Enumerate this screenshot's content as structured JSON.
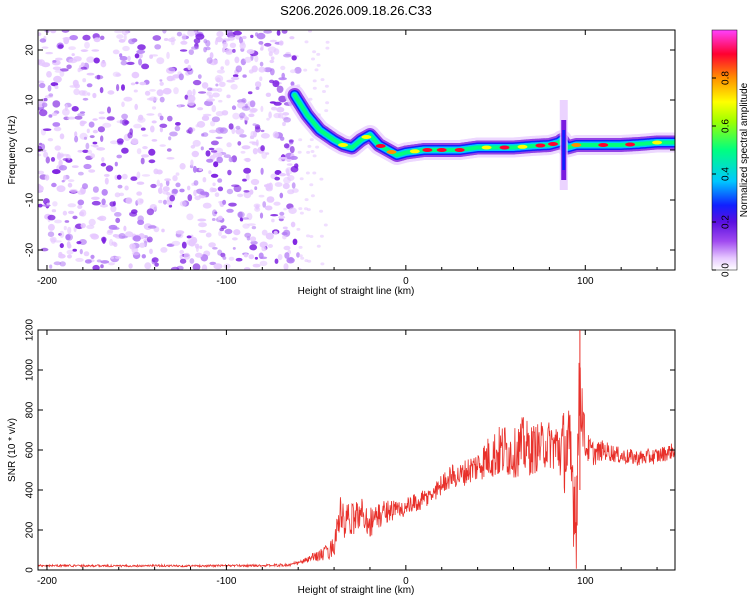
{
  "title": "S206.2026.009.18.26.C33",
  "colors": {
    "snr_line": "#e8302a",
    "axis": "#000000",
    "background": "#ffffff",
    "colormap": [
      "#ffffff",
      "#e6c8ff",
      "#7a1be0",
      "#1020ff",
      "#00c8ff",
      "#00ff80",
      "#ffff00",
      "#ff9000",
      "#ff0030",
      "#ff40ff"
    ]
  },
  "chart_data": [
    {
      "type": "heatmap",
      "name": "spectrogram",
      "title": "S206.2026.009.18.26.C33",
      "xlabel": "Height of straight line (km)",
      "ylabel": "Frequency (Hz)",
      "xlim": [
        -205,
        150
      ],
      "ylim": [
        -24,
        24
      ],
      "xticks": [
        -200,
        -100,
        0,
        100
      ],
      "xtick_labels": [
        "-200",
        "-100",
        "0",
        "100"
      ],
      "yticks": [
        -20,
        -10,
        0,
        10,
        20
      ],
      "ytick_labels": [
        "-20",
        "-10",
        "0",
        "10",
        "20"
      ],
      "noise_region_x": [
        -205,
        -60
      ],
      "trace": {
        "x": [
          -62,
          -55,
          -48,
          -40,
          -35,
          -30,
          -25,
          -20,
          -15,
          -10,
          -5,
          0,
          10,
          20,
          30,
          40,
          50,
          60,
          70,
          80,
          85,
          87,
          90,
          95,
          100,
          110,
          120,
          130,
          140,
          150
        ],
        "y": [
          11,
          7,
          4,
          2,
          1,
          0.5,
          2,
          3,
          1,
          0,
          -1,
          -0.5,
          0,
          0,
          0,
          0.5,
          0.5,
          0.5,
          0.8,
          1,
          1.5,
          2,
          0.5,
          1,
          1,
          1,
          1,
          1.2,
          1.5,
          1.5
        ]
      },
      "spike": {
        "x": 88,
        "y_range": [
          -8,
          10
        ]
      },
      "colorbar": {
        "label": "Normalized spectral amplitude",
        "range": [
          0,
          1
        ],
        "ticks": [
          0.0,
          0.2,
          0.4,
          0.6,
          0.8
        ],
        "tick_labels": [
          "0.0",
          "0.2",
          "0.4",
          "0.6",
          "0.8"
        ]
      }
    },
    {
      "type": "line",
      "name": "snr",
      "xlabel": "Height of straight line (km)",
      "ylabel": "SNR (10 * v/v)",
      "xlim": [
        -205,
        150
      ],
      "ylim": [
        0,
        1200
      ],
      "xticks": [
        -200,
        -100,
        0,
        100
      ],
      "xtick_labels": [
        "-200",
        "-100",
        "0",
        "100"
      ],
      "yticks": [
        0,
        200,
        400,
        600,
        800,
        1000,
        1200
      ],
      "ytick_labels": [
        "0",
        "200",
        "400",
        "600",
        "800",
        "1000",
        "1200"
      ],
      "series": [
        {
          "name": "SNR",
          "x": [
            -205,
            -180,
            -160,
            -140,
            -120,
            -100,
            -80,
            -65,
            -60,
            -55,
            -50,
            -45,
            -40,
            -37,
            -35,
            -30,
            -25,
            -20,
            -15,
            -10,
            -5,
            0,
            5,
            10,
            15,
            20,
            25,
            30,
            35,
            40,
            45,
            50,
            55,
            60,
            65,
            70,
            75,
            80,
            85,
            90,
            93,
            95,
            97,
            100,
            105,
            110,
            120,
            130,
            140,
            150
          ],
          "values": [
            22,
            22,
            20,
            22,
            20,
            22,
            22,
            25,
            35,
            50,
            70,
            80,
            120,
            280,
            230,
            250,
            290,
            240,
            270,
            300,
            300,
            310,
            330,
            350,
            380,
            430,
            470,
            470,
            500,
            520,
            560,
            580,
            600,
            580,
            620,
            600,
            620,
            630,
            610,
            600,
            450,
            300,
            950,
            620,
            580,
            600,
            570,
            560,
            570,
            600
          ],
          "amplitude": [
            5,
            5,
            5,
            5,
            5,
            5,
            5,
            8,
            10,
            15,
            25,
            40,
            50,
            100,
            110,
            80,
            80,
            80,
            70,
            60,
            50,
            50,
            50,
            50,
            50,
            50,
            60,
            60,
            70,
            80,
            100,
            130,
            140,
            120,
            150,
            130,
            120,
            120,
            150,
            250,
            300,
            300,
            250,
            80,
            60,
            50,
            40,
            40,
            40,
            40
          ]
        }
      ]
    }
  ]
}
